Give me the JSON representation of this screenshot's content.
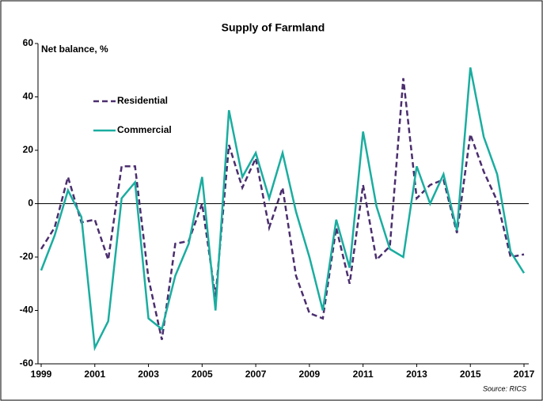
{
  "chart_data": {
    "type": "line",
    "title": "Supply of Farmland",
    "ylabel": "Net balance, %",
    "source": "Source: RICS",
    "x": [
      1999,
      1999.5,
      2000,
      2000.5,
      2001,
      2001.5,
      2002,
      2002.5,
      2003,
      2003.5,
      2004,
      2004.5,
      2005,
      2005.5,
      2006,
      2006.5,
      2007,
      2007.5,
      2008,
      2008.5,
      2009,
      2009.5,
      2010,
      2010.5,
      2011,
      2011.5,
      2012,
      2012.5,
      2013,
      2013.5,
      2014,
      2014.5,
      2015,
      2015.5,
      2016,
      2016.5,
      2017
    ],
    "series": [
      {
        "name": "Residential",
        "color": "#4b2e6e",
        "dash": true,
        "values": [
          -17,
          -9,
          10,
          -7,
          -6,
          -21,
          14,
          14,
          -28,
          -51,
          -15,
          -14,
          0,
          -35,
          22,
          6,
          17,
          -9,
          6,
          -27,
          -41,
          -43,
          -9,
          -30,
          7,
          -21,
          -16,
          47,
          2,
          7,
          9,
          -11,
          26,
          12,
          1,
          -20,
          -19
        ]
      },
      {
        "name": "Commercial",
        "color": "#1aada0",
        "dash": false,
        "values": [
          -25,
          -12,
          5,
          -5,
          -54,
          -44,
          2,
          8,
          -43,
          -47,
          -27,
          -15,
          10,
          -40,
          35,
          10,
          19,
          2,
          19,
          -3,
          -20,
          -40,
          -6,
          -24,
          27,
          -1,
          -17,
          -20,
          14,
          0,
          11,
          -10,
          51,
          25,
          11,
          -18,
          -26
        ]
      }
    ],
    "xlim": [
      1999,
      2017
    ],
    "xticks": [
      1999,
      2001,
      2003,
      2005,
      2007,
      2009,
      2011,
      2013,
      2015,
      2017
    ],
    "ylim": [
      -60,
      60
    ],
    "yticks": [
      -60,
      -40,
      -20,
      0,
      20,
      40,
      60
    ]
  }
}
